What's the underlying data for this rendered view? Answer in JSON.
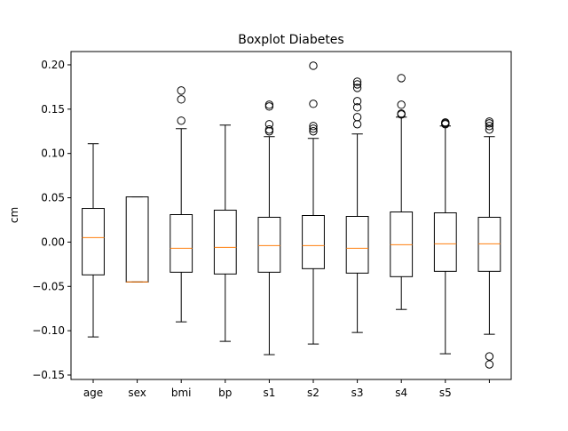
{
  "chart_data": {
    "type": "boxplot",
    "title": "Boxplot Diabetes",
    "xlabel": "",
    "ylabel": "cm",
    "ylim": [
      -0.155,
      0.215
    ],
    "yticks": [
      -0.15,
      -0.1,
      -0.05,
      0.0,
      0.05,
      0.1,
      0.15,
      0.2
    ],
    "ytick_labels": [
      "−0.15",
      "−0.10",
      "−0.05",
      "0.00",
      "0.05",
      "0.10",
      "0.15",
      "0.20"
    ],
    "categories": [
      "age",
      "sex",
      "bmi",
      "bp",
      "s1",
      "s2",
      "s3",
      "s4",
      "s5",
      ""
    ],
    "grid": false,
    "colors": {
      "box": "#000000",
      "median": "#ff7f0e",
      "outlier": "#000000"
    },
    "boxes": [
      {
        "label": "age",
        "whislo": -0.107,
        "q1": -0.037,
        "med": 0.005,
        "q3": 0.038,
        "whishi": 0.111,
        "fliers": []
      },
      {
        "label": "sex",
        "whislo": -0.045,
        "q1": -0.045,
        "med": -0.045,
        "q3": 0.051,
        "whishi": 0.051,
        "fliers": []
      },
      {
        "label": "bmi",
        "whislo": -0.09,
        "q1": -0.034,
        "med": -0.007,
        "q3": 0.031,
        "whishi": 0.128,
        "fliers": [
          0.137,
          0.161,
          0.171
        ]
      },
      {
        "label": "bp",
        "whislo": -0.112,
        "q1": -0.036,
        "med": -0.006,
        "q3": 0.036,
        "whishi": 0.132,
        "fliers": []
      },
      {
        "label": "s1",
        "whislo": -0.127,
        "q1": -0.034,
        "med": -0.004,
        "q3": 0.028,
        "whishi": 0.119,
        "fliers": [
          0.125,
          0.127,
          0.133,
          0.153,
          0.155
        ]
      },
      {
        "label": "s2",
        "whislo": -0.115,
        "q1": -0.03,
        "med": -0.004,
        "q3": 0.03,
        "whishi": 0.117,
        "fliers": [
          0.125,
          0.128,
          0.131,
          0.156,
          0.199
        ]
      },
      {
        "label": "s3",
        "whislo": -0.102,
        "q1": -0.035,
        "med": -0.007,
        "q3": 0.029,
        "whishi": 0.122,
        "fliers": [
          0.133,
          0.141,
          0.152,
          0.159,
          0.174,
          0.178,
          0.181
        ]
      },
      {
        "label": "s4",
        "whislo": -0.076,
        "q1": -0.039,
        "med": -0.003,
        "q3": 0.034,
        "whishi": 0.141,
        "fliers": [
          0.144,
          0.145,
          0.155,
          0.185
        ]
      },
      {
        "label": "s5",
        "whislo": -0.126,
        "q1": -0.033,
        "med": -0.002,
        "q3": 0.033,
        "whishi": 0.131,
        "fliers": [
          0.133,
          0.134,
          0.135
        ]
      },
      {
        "label": "",
        "whislo": -0.104,
        "q1": -0.033,
        "med": -0.002,
        "q3": 0.028,
        "whishi": 0.119,
        "fliers": [
          -0.138,
          -0.129,
          0.127,
          0.131,
          0.134,
          0.136
        ]
      }
    ]
  }
}
